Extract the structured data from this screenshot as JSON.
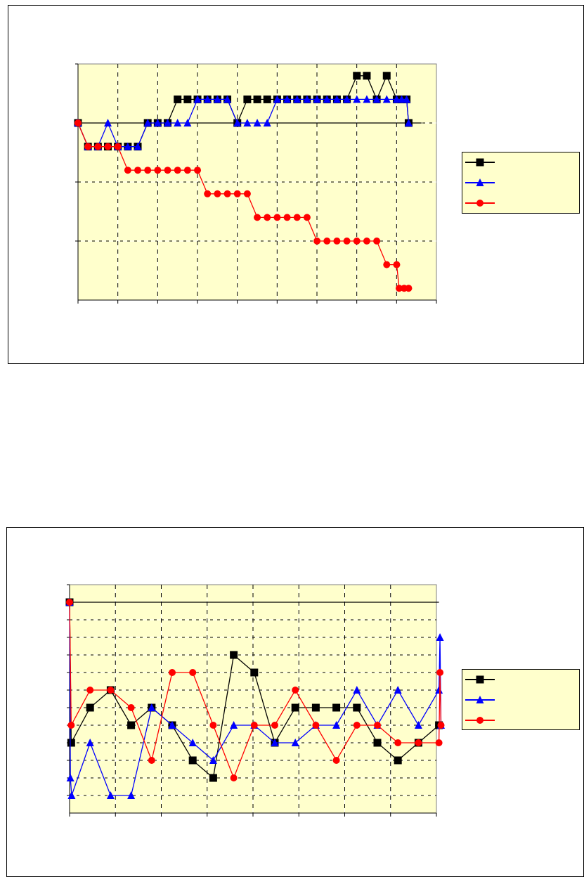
{
  "colors": {
    "black": "#000000",
    "blue": "#0000FF",
    "red": "#FF0000",
    "plot_bg": "#FFFFCC"
  },
  "chart_data": [
    {
      "type": "line",
      "title": "",
      "xlabel": "",
      "ylabel": "",
      "xlim": [
        0,
        36
      ],
      "ylim": [
        0,
        4
      ],
      "x_gridlines": 9,
      "y_gridlines": 4,
      "grid": true,
      "legend": "right",
      "reference_line": {
        "y": 3.0,
        "x": [
          0,
          34.5
        ],
        "color": "#000000"
      },
      "series": [
        {
          "marker": "square",
          "color": "#000000",
          "x": [
            0,
            1,
            2,
            3,
            4,
            5,
            6,
            7,
            8,
            9,
            10,
            11,
            12,
            13,
            14,
            15,
            16,
            17,
            18,
            19,
            20,
            21,
            22,
            23,
            24,
            25,
            26,
            27,
            28,
            29,
            30,
            31,
            32,
            32.5,
            33,
            33.2
          ],
          "y": [
            3.0,
            2.6,
            2.6,
            2.6,
            2.6,
            2.6,
            2.6,
            3.0,
            3.0,
            3.0,
            3.4,
            3.4,
            3.4,
            3.4,
            3.4,
            3.4,
            3.0,
            3.4,
            3.4,
            3.4,
            3.4,
            3.4,
            3.4,
            3.4,
            3.4,
            3.4,
            3.4,
            3.4,
            3.8,
            3.8,
            3.4,
            3.8,
            3.4,
            3.4,
            3.4,
            3.0
          ]
        },
        {
          "marker": "triangle",
          "color": "#0000FF",
          "x": [
            0,
            1,
            2,
            3,
            4,
            5,
            6,
            7,
            8,
            9,
            10,
            11,
            12,
            13,
            14,
            15,
            16,
            17,
            18,
            19,
            20,
            21,
            22,
            23,
            24,
            25,
            26,
            27,
            28,
            29,
            30,
            31,
            32,
            32.5,
            33,
            33.2
          ],
          "y": [
            3.0,
            2.6,
            2.6,
            3.0,
            2.6,
            2.6,
            2.6,
            3.0,
            3.0,
            3.0,
            3.0,
            3.0,
            3.4,
            3.4,
            3.4,
            3.4,
            3.0,
            3.0,
            3.0,
            3.0,
            3.4,
            3.4,
            3.4,
            3.4,
            3.4,
            3.4,
            3.4,
            3.4,
            3.4,
            3.4,
            3.4,
            3.4,
            3.4,
            3.4,
            3.4,
            3.0
          ]
        },
        {
          "marker": "circle",
          "color": "#FF0000",
          "x": [
            0,
            1,
            2,
            3,
            4,
            5,
            6,
            7,
            8,
            9,
            10,
            11,
            12,
            13,
            14,
            15,
            16,
            17,
            18,
            19,
            20,
            21,
            22,
            23,
            24,
            25,
            26,
            27,
            28,
            29,
            30,
            31,
            32,
            32.25,
            32.75,
            33.2
          ],
          "y": [
            3.0,
            2.6,
            2.6,
            2.6,
            2.6,
            2.2,
            2.2,
            2.2,
            2.2,
            2.2,
            2.2,
            2.2,
            2.2,
            1.8,
            1.8,
            1.8,
            1.8,
            1.8,
            1.4,
            1.4,
            1.4,
            1.4,
            1.4,
            1.4,
            1.0,
            1.0,
            1.0,
            1.0,
            1.0,
            1.0,
            1.0,
            0.6,
            0.6,
            0.2,
            0.2,
            0.2
          ]
        }
      ]
    },
    {
      "type": "line",
      "title": "",
      "xlabel": "",
      "ylabel": "",
      "xlim": [
        0,
        20
      ],
      "ylim": [
        0,
        13
      ],
      "x_gridlines": 8,
      "y_gridlines": 13,
      "grid": true,
      "legend": "right",
      "reference_line": {
        "y": 12,
        "x": [
          0,
          18
        ],
        "color": "#000000"
      },
      "series": [
        {
          "marker": "square",
          "color": "#000000",
          "x": [
            0,
            0.08,
            1,
            2,
            3,
            4,
            5,
            6,
            7,
            8,
            9,
            10,
            11,
            12,
            13,
            14,
            15,
            16,
            17,
            18
          ],
          "y": [
            12,
            4,
            6,
            7,
            5,
            6,
            5,
            3,
            2,
            9,
            8,
            4,
            6,
            6,
            6,
            6,
            4,
            3,
            4,
            5
          ]
        },
        {
          "marker": "triangle",
          "color": "#0000FF",
          "x": [
            0,
            0.04,
            0.1,
            1,
            2,
            3,
            4,
            5,
            6,
            7,
            8,
            9,
            10,
            11,
            12,
            13,
            14,
            15,
            16,
            17,
            18,
            18.05,
            18.1
          ],
          "y": [
            12,
            2,
            1,
            4,
            1,
            1,
            6,
            5,
            4,
            3,
            5,
            5,
            4,
            4,
            5,
            5,
            7,
            5,
            7,
            5,
            7,
            10,
            5
          ]
        },
        {
          "marker": "circle",
          "color": "#FF0000",
          "x": [
            0,
            0.08,
            1,
            2,
            3,
            4,
            5,
            6,
            7,
            8,
            9,
            10,
            11,
            12,
            13,
            14,
            15,
            16,
            17,
            18,
            18.05,
            18.1
          ],
          "y": [
            12,
            5,
            7,
            7,
            6,
            3,
            8,
            8,
            5,
            2,
            5,
            5,
            7,
            5,
            3,
            5,
            5,
            4,
            4,
            4,
            8,
            5
          ]
        }
      ]
    }
  ]
}
